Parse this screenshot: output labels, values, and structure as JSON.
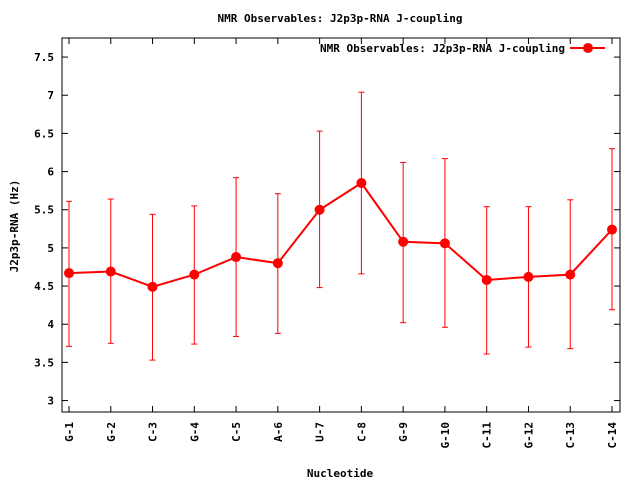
{
  "chart_data": {
    "type": "line",
    "title": "NMR Observables: J2p3p-RNA J-coupling",
    "xlabel": "Nucleotide",
    "ylabel": "J2p3p-RNA (Hz)",
    "categories": [
      "G-1",
      "G-2",
      "C-3",
      "G-4",
      "C-5",
      "A-6",
      "U-7",
      "C-8",
      "G-9",
      "G-10",
      "C-11",
      "G-12",
      "C-13",
      "C-14"
    ],
    "ylim": [
      2.85,
      7.75
    ],
    "yticks": [
      3,
      3.5,
      4,
      4.5,
      5,
      5.5,
      6,
      6.5,
      7,
      7.5
    ],
    "ytick_labels": [
      "3",
      "3.5",
      "4",
      "4.5",
      "5",
      "5.5",
      "6",
      "6.5",
      "7",
      "7.5"
    ],
    "grid": false,
    "legend_position": "top-right",
    "series": [
      {
        "name": "NMR Observables: J2p3p-RNA J-coupling",
        "color": "#ff0000",
        "values": [
          4.67,
          4.69,
          4.49,
          4.65,
          4.88,
          4.8,
          5.5,
          5.85,
          5.08,
          5.06,
          4.58,
          4.62,
          4.65,
          5.24
        ],
        "err_low": [
          3.71,
          3.75,
          3.53,
          3.74,
          3.84,
          3.88,
          4.48,
          4.66,
          4.02,
          3.96,
          3.61,
          3.7,
          3.68,
          4.19
        ],
        "err_high": [
          5.61,
          5.64,
          5.44,
          5.55,
          5.92,
          5.71,
          6.53,
          7.04,
          6.12,
          6.17,
          5.54,
          5.54,
          5.63,
          6.3
        ]
      }
    ]
  }
}
